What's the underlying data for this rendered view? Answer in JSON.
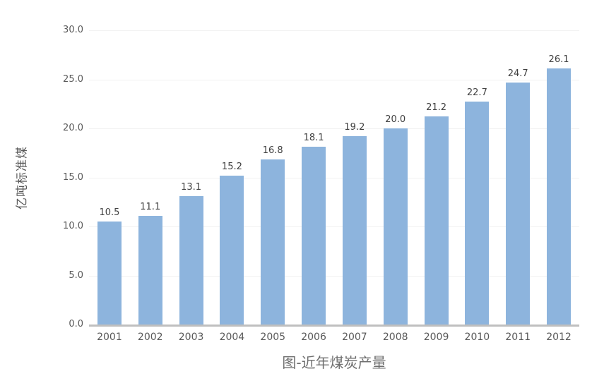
{
  "chart_data": {
    "type": "bar",
    "title": "图-近年煤炭产量",
    "ylabel": "亿吨标准煤",
    "xlabel": "",
    "categories": [
      "2001",
      "2002",
      "2003",
      "2004",
      "2005",
      "2006",
      "2007",
      "2008",
      "2009",
      "2010",
      "2011",
      "2012"
    ],
    "values": [
      10.5,
      11.1,
      13.1,
      15.2,
      16.8,
      18.1,
      19.2,
      20.0,
      21.2,
      22.7,
      24.7,
      26.1
    ],
    "value_labels": [
      "10.5",
      "11.1",
      "13.1",
      "15.2",
      "16.8",
      "18.1",
      "19.2",
      "20.0",
      "21.2",
      "22.7",
      "24.7",
      "26.1"
    ],
    "ylim": [
      0,
      30
    ],
    "y_ticks": [
      30,
      25,
      20,
      15,
      10,
      5,
      0
    ],
    "y_tick_labels": [
      "30.0",
      "25.0",
      "20.0",
      "15.0",
      "10.0",
      "5.0",
      "0.0"
    ],
    "grid": "horizontal",
    "legend": "none",
    "colors": {
      "bar": "#8DB4DD",
      "axis_line": "#BFBFBF",
      "gridline": "#F1F1F1",
      "tick_label": "#595959",
      "value_label": "#404040",
      "title": "#6E6E6E"
    }
  }
}
